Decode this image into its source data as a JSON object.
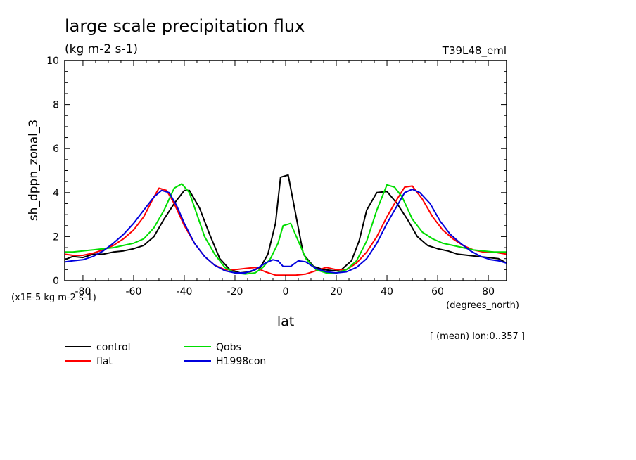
{
  "chart_data": {
    "type": "line",
    "title": "large scale precipitation flux",
    "subtitle": "(kg m-2 s-1)",
    "experiment": "T39L48_eml",
    "ylabel": "sh_dppn_zonal_3",
    "xlabel": "lat",
    "x_units": "(degrees_north)",
    "y_scale_note": "(x1E-5 kg m-2 s-1)",
    "averaging_note": "[ (mean) lon:0..357 ]",
    "xlim": [
      -87.2,
      87.2
    ],
    "ylim": [
      0,
      10
    ],
    "x_ticks": [
      -80,
      -60,
      -40,
      -20,
      0,
      20,
      40,
      60,
      80
    ],
    "x_tick_labels": [
      "-80",
      "-60",
      "-40",
      "-20",
      "0",
      "20",
      "40",
      "60",
      "80"
    ],
    "y_ticks": [
      0,
      2,
      4,
      6,
      8,
      10
    ],
    "y_tick_labels": [
      "0",
      "2",
      "4",
      "6",
      "8",
      "10"
    ],
    "grid": false,
    "legend_position": "bottom-left",
    "series": [
      {
        "name": "control",
        "color": "#000000",
        "points": [
          [
            -87.2,
            0.95
          ],
          [
            -84,
            1.1
          ],
          [
            -80,
            1.05
          ],
          [
            -76,
            1.2
          ],
          [
            -72,
            1.2
          ],
          [
            -68,
            1.3
          ],
          [
            -64,
            1.35
          ],
          [
            -60,
            1.45
          ],
          [
            -56,
            1.6
          ],
          [
            -52,
            2.0
          ],
          [
            -48,
            2.8
          ],
          [
            -44,
            3.5
          ],
          [
            -40,
            4.1
          ],
          [
            -38,
            4.1
          ],
          [
            -34,
            3.3
          ],
          [
            -30,
            2.1
          ],
          [
            -26,
            1.0
          ],
          [
            -22,
            0.5
          ],
          [
            -18,
            0.35
          ],
          [
            -14,
            0.4
          ],
          [
            -10,
            0.6
          ],
          [
            -7,
            1.2
          ],
          [
            -4,
            2.6
          ],
          [
            -2,
            4.7
          ],
          [
            1,
            4.8
          ],
          [
            4,
            3.0
          ],
          [
            7,
            1.2
          ],
          [
            11,
            0.65
          ],
          [
            15,
            0.5
          ],
          [
            19,
            0.45
          ],
          [
            22,
            0.5
          ],
          [
            26,
            0.9
          ],
          [
            29,
            1.8
          ],
          [
            32,
            3.2
          ],
          [
            36,
            4.0
          ],
          [
            40,
            4.05
          ],
          [
            44,
            3.5
          ],
          [
            48,
            2.8
          ],
          [
            52,
            2.0
          ],
          [
            56,
            1.6
          ],
          [
            60,
            1.45
          ],
          [
            64,
            1.35
          ],
          [
            68,
            1.2
          ],
          [
            72,
            1.15
          ],
          [
            76,
            1.1
          ],
          [
            80,
            1.05
          ],
          [
            84,
            1.0
          ],
          [
            87.2,
            0.8
          ]
        ]
      },
      {
        "name": "flat",
        "color": "#ff0000",
        "points": [
          [
            -87.2,
            1.2
          ],
          [
            -84,
            1.15
          ],
          [
            -80,
            1.15
          ],
          [
            -76,
            1.25
          ],
          [
            -72,
            1.4
          ],
          [
            -68,
            1.6
          ],
          [
            -64,
            1.9
          ],
          [
            -60,
            2.3
          ],
          [
            -56,
            2.9
          ],
          [
            -52,
            3.8
          ],
          [
            -50,
            4.2
          ],
          [
            -47,
            4.1
          ],
          [
            -44,
            3.5
          ],
          [
            -40,
            2.5
          ],
          [
            -36,
            1.7
          ],
          [
            -32,
            1.1
          ],
          [
            -28,
            0.7
          ],
          [
            -24,
            0.5
          ],
          [
            -20,
            0.5
          ],
          [
            -16,
            0.55
          ],
          [
            -12,
            0.6
          ],
          [
            -8,
            0.4
          ],
          [
            -4,
            0.25
          ],
          [
            0,
            0.25
          ],
          [
            4,
            0.25
          ],
          [
            8,
            0.3
          ],
          [
            12,
            0.45
          ],
          [
            16,
            0.6
          ],
          [
            20,
            0.5
          ],
          [
            24,
            0.5
          ],
          [
            28,
            0.8
          ],
          [
            32,
            1.3
          ],
          [
            36,
            2.0
          ],
          [
            40,
            2.9
          ],
          [
            44,
            3.7
          ],
          [
            47,
            4.25
          ],
          [
            50,
            4.3
          ],
          [
            54,
            3.7
          ],
          [
            58,
            2.9
          ],
          [
            62,
            2.3
          ],
          [
            66,
            1.9
          ],
          [
            70,
            1.6
          ],
          [
            74,
            1.4
          ],
          [
            78,
            1.3
          ],
          [
            82,
            1.3
          ],
          [
            87.2,
            1.2
          ]
        ]
      },
      {
        "name": "Qobs",
        "color": "#00dd00",
        "points": [
          [
            -87.2,
            1.3
          ],
          [
            -84,
            1.3
          ],
          [
            -80,
            1.35
          ],
          [
            -76,
            1.4
          ],
          [
            -72,
            1.45
          ],
          [
            -68,
            1.5
          ],
          [
            -64,
            1.6
          ],
          [
            -60,
            1.7
          ],
          [
            -56,
            1.9
          ],
          [
            -52,
            2.4
          ],
          [
            -48,
            3.2
          ],
          [
            -44,
            4.2
          ],
          [
            -41,
            4.4
          ],
          [
            -38,
            4.0
          ],
          [
            -35,
            3.0
          ],
          [
            -32,
            2.0
          ],
          [
            -28,
            1.2
          ],
          [
            -24,
            0.6
          ],
          [
            -20,
            0.35
          ],
          [
            -16,
            0.3
          ],
          [
            -12,
            0.35
          ],
          [
            -9,
            0.6
          ],
          [
            -6,
            1.0
          ],
          [
            -3,
            1.7
          ],
          [
            -1,
            2.5
          ],
          [
            2,
            2.6
          ],
          [
            5,
            1.8
          ],
          [
            8,
            1.0
          ],
          [
            12,
            0.5
          ],
          [
            16,
            0.35
          ],
          [
            20,
            0.35
          ],
          [
            24,
            0.5
          ],
          [
            28,
            0.9
          ],
          [
            32,
            1.8
          ],
          [
            36,
            3.2
          ],
          [
            40,
            4.35
          ],
          [
            43,
            4.25
          ],
          [
            46,
            3.8
          ],
          [
            50,
            2.8
          ],
          [
            54,
            2.2
          ],
          [
            58,
            1.9
          ],
          [
            62,
            1.7
          ],
          [
            66,
            1.6
          ],
          [
            70,
            1.5
          ],
          [
            74,
            1.4
          ],
          [
            78,
            1.35
          ],
          [
            82,
            1.3
          ],
          [
            87.2,
            1.3
          ]
        ]
      },
      {
        "name": "H1998con",
        "color": "#0000dd",
        "points": [
          [
            -87.2,
            0.85
          ],
          [
            -84,
            0.9
          ],
          [
            -80,
            0.95
          ],
          [
            -76,
            1.1
          ],
          [
            -72,
            1.35
          ],
          [
            -68,
            1.7
          ],
          [
            -64,
            2.1
          ],
          [
            -60,
            2.6
          ],
          [
            -56,
            3.2
          ],
          [
            -52,
            3.8
          ],
          [
            -49,
            4.1
          ],
          [
            -46,
            4.0
          ],
          [
            -43,
            3.4
          ],
          [
            -40,
            2.6
          ],
          [
            -36,
            1.7
          ],
          [
            -32,
            1.1
          ],
          [
            -28,
            0.7
          ],
          [
            -24,
            0.45
          ],
          [
            -20,
            0.35
          ],
          [
            -16,
            0.35
          ],
          [
            -12,
            0.5
          ],
          [
            -8,
            0.8
          ],
          [
            -5,
            0.95
          ],
          [
            -3,
            0.9
          ],
          [
            -1,
            0.65
          ],
          [
            2,
            0.65
          ],
          [
            5,
            0.9
          ],
          [
            8,
            0.85
          ],
          [
            12,
            0.55
          ],
          [
            16,
            0.4
          ],
          [
            20,
            0.35
          ],
          [
            24,
            0.4
          ],
          [
            28,
            0.6
          ],
          [
            32,
            1.0
          ],
          [
            36,
            1.7
          ],
          [
            40,
            2.6
          ],
          [
            44,
            3.4
          ],
          [
            47,
            4.0
          ],
          [
            50,
            4.15
          ],
          [
            53,
            4.0
          ],
          [
            57,
            3.5
          ],
          [
            61,
            2.7
          ],
          [
            65,
            2.1
          ],
          [
            69,
            1.7
          ],
          [
            73,
            1.35
          ],
          [
            77,
            1.1
          ],
          [
            81,
            0.95
          ],
          [
            84,
            0.9
          ],
          [
            87.2,
            0.8
          ]
        ]
      }
    ]
  }
}
